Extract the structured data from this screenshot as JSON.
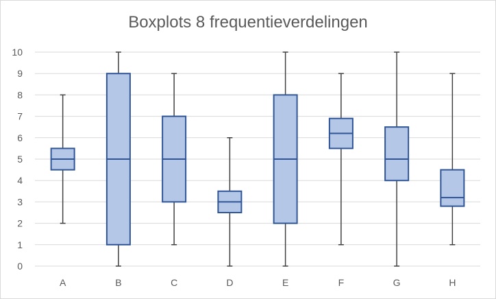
{
  "chart_data": {
    "type": "boxplot",
    "title": "Boxplots 8 frequentieverdelingen",
    "xlabel": "",
    "ylabel": "",
    "ylim": [
      0,
      10
    ],
    "yticks": [
      0,
      1,
      2,
      3,
      4,
      5,
      6,
      7,
      8,
      9,
      10
    ],
    "grid": true,
    "categories": [
      "A",
      "B",
      "C",
      "D",
      "E",
      "F",
      "G",
      "H"
    ],
    "boxes": [
      {
        "label": "A",
        "min": 2,
        "q1": 4.5,
        "median": 5,
        "q3": 5.5,
        "max": 8
      },
      {
        "label": "B",
        "min": 0,
        "q1": 1,
        "median": 5,
        "q3": 9,
        "max": 10
      },
      {
        "label": "C",
        "min": 1,
        "q1": 3,
        "median": 5,
        "q3": 7,
        "max": 9
      },
      {
        "label": "D",
        "min": 0,
        "q1": 2.5,
        "median": 3,
        "q3": 3.5,
        "max": 6
      },
      {
        "label": "E",
        "min": 0,
        "q1": 2,
        "median": 5,
        "q3": 8,
        "max": 10
      },
      {
        "label": "F",
        "min": 1,
        "q1": 5.5,
        "median": 6.2,
        "q3": 6.9,
        "max": 9
      },
      {
        "label": "G",
        "min": 0,
        "q1": 4,
        "median": 5,
        "q3": 6.5,
        "max": 10
      },
      {
        "label": "H",
        "min": 1,
        "q1": 2.8,
        "median": 3.2,
        "q3": 4.5,
        "max": 9
      }
    ],
    "colors": {
      "box_fill": "#b4c7e7",
      "box_stroke": "#2f5597",
      "whisker": "#404040",
      "grid": "#d9d9d9",
      "text": "#595959"
    }
  }
}
